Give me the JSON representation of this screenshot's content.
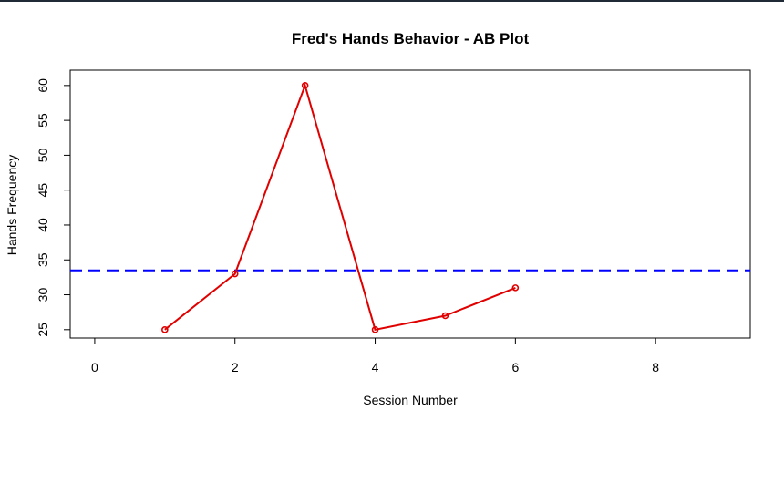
{
  "chart_data": {
    "type": "line",
    "title": "Fred's Hands Behavior - AB Plot",
    "xlabel": "Session Number",
    "ylabel": "Hands Frequency",
    "xlim": [
      -0.35,
      9.35
    ],
    "ylim": [
      23.8,
      62.2
    ],
    "x_ticks": [
      0,
      2,
      4,
      6,
      8
    ],
    "y_ticks": [
      25,
      30,
      35,
      40,
      45,
      50,
      55,
      60
    ],
    "grid": false,
    "legend": "none",
    "series": [
      {
        "x": [
          1,
          2,
          3,
          4,
          5,
          6
        ],
        "values": [
          25,
          33,
          60,
          25,
          27,
          31
        ],
        "color": "#e00000",
        "marker": "circle"
      }
    ],
    "reference_lines": [
      {
        "orientation": "horizontal",
        "y": 33.5,
        "color": "#0000ff",
        "style": "dashed"
      }
    ]
  }
}
